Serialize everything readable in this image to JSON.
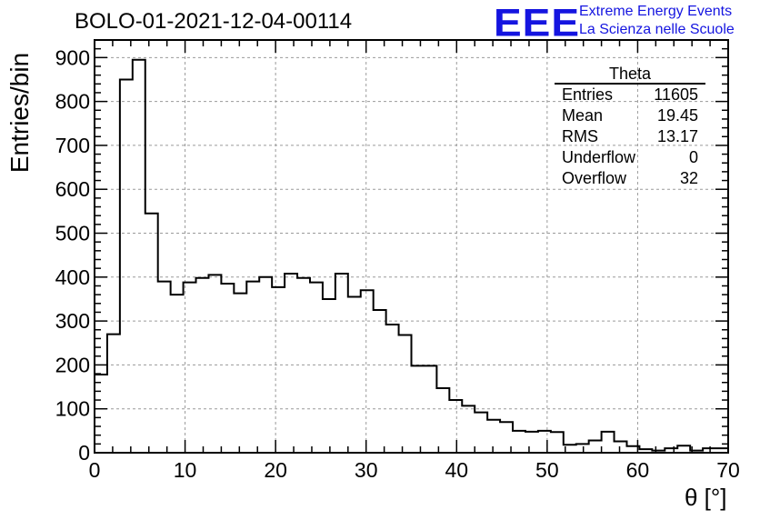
{
  "title": "BOLO-01-2021-12-04-00114",
  "logo": {
    "mark": "EEE",
    "line1": "Extreme Energy Events",
    "line2": "La Scienza nelle Scuole",
    "color": "#1515e0"
  },
  "stats": {
    "title": "Theta",
    "rows": [
      {
        "label": "Entries",
        "value": "11605"
      },
      {
        "label": "Mean",
        "value": "19.45"
      },
      {
        "label": "RMS",
        "value": "13.17"
      },
      {
        "label": "Underflow",
        "value": "0"
      },
      {
        "label": "Overflow",
        "value": "32"
      }
    ]
  },
  "chart_data": {
    "type": "histogram",
    "title": "BOLO-01-2021-12-04-00114",
    "xlabel": "θ [°]",
    "ylabel": "Entries/bin",
    "xlim": [
      0,
      70
    ],
    "ylim": [
      0,
      940
    ],
    "bin_width": 1.4,
    "grid": true,
    "x_ticks": [
      0,
      10,
      20,
      30,
      40,
      50,
      60,
      70
    ],
    "y_ticks": [
      0,
      100,
      200,
      300,
      400,
      500,
      600,
      700,
      800,
      900
    ],
    "values": [
      178,
      270,
      850,
      895,
      545,
      390,
      360,
      388,
      398,
      405,
      385,
      363,
      390,
      400,
      377,
      408,
      398,
      388,
      350,
      408,
      355,
      370,
      325,
      292,
      268,
      198,
      198,
      147,
      120,
      107,
      92,
      75,
      70,
      50,
      48,
      50,
      47,
      18,
      20,
      28,
      48,
      26,
      15,
      8,
      5,
      10,
      16,
      5,
      10,
      10
    ]
  }
}
